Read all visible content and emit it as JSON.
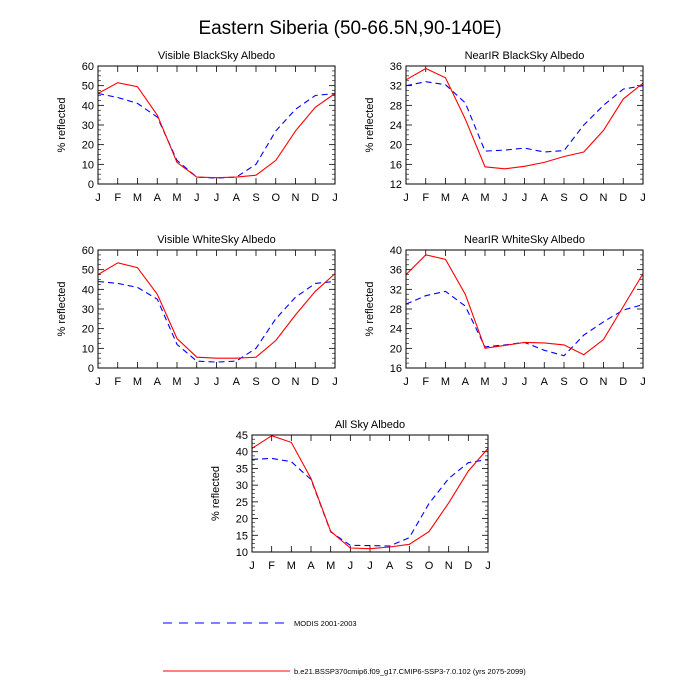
{
  "title": "Eastern Siberia (50-66.5N,90-140E)",
  "colors": {
    "modis": "#0000ff",
    "model": "#ff0000",
    "axis": "#000000"
  },
  "months": [
    "J",
    "F",
    "M",
    "A",
    "M",
    "J",
    "J",
    "A",
    "S",
    "O",
    "N",
    "D",
    "J"
  ],
  "ylabel": "% reflected",
  "legend": {
    "modis": "MODIS 2001-2003",
    "model": "b.e21.BSSP370cmip6.f09_g17.CMIP6-SSP3-7.0.102 (yrs 2075-2099)"
  },
  "chart_data": [
    {
      "type": "line",
      "title": "Visible BlackSky Albedo",
      "ylabel": "% reflected",
      "ylim": [
        0,
        60
      ],
      "yticks": [
        0,
        10,
        20,
        30,
        40,
        50,
        60
      ],
      "categories": [
        "J",
        "F",
        "M",
        "A",
        "M",
        "J",
        "J",
        "A",
        "S",
        "O",
        "N",
        "D",
        "J"
      ],
      "series": [
        {
          "name": "MODIS 2001-2003",
          "values": [
            46,
            44,
            41,
            34,
            12,
            3.5,
            3,
            3.5,
            10,
            27,
            38,
            45,
            46
          ]
        },
        {
          "name": "b.e21.BSSP370cmip6.f09_g17.CMIP6-SSP3-7.0.102 (yrs 2075-2099)",
          "values": [
            46,
            51.5,
            49.5,
            35,
            11,
            3.5,
            3.2,
            3.5,
            4.5,
            12,
            27,
            39,
            46
          ]
        }
      ]
    },
    {
      "type": "line",
      "title": "NearIR BlackSky Albedo",
      "ylabel": "% reflected",
      "ylim": [
        12,
        36
      ],
      "yticks": [
        12,
        16,
        20,
        24,
        28,
        32,
        36
      ],
      "categories": [
        "J",
        "F",
        "M",
        "A",
        "M",
        "J",
        "J",
        "A",
        "S",
        "O",
        "N",
        "D",
        "J"
      ],
      "series": [
        {
          "name": "MODIS 2001-2003",
          "values": [
            32,
            32.8,
            32.2,
            28.5,
            18.7,
            18.9,
            19.3,
            18.5,
            18.8,
            24,
            28,
            31.3,
            32
          ]
        },
        {
          "name": "b.e21.BSSP370cmip6.f09_g17.CMIP6-SSP3-7.0.102 (yrs 2075-2099)",
          "values": [
            33.2,
            35.5,
            33.6,
            25.2,
            15.5,
            15.1,
            15.6,
            16.4,
            17.6,
            18.5,
            22.9,
            29.3,
            32.5
          ]
        }
      ]
    },
    {
      "type": "line",
      "title": "Visible WhiteSky Albedo",
      "ylabel": "% reflected",
      "ylim": [
        0,
        60
      ],
      "yticks": [
        0,
        10,
        20,
        30,
        40,
        50,
        60
      ],
      "categories": [
        "J",
        "F",
        "M",
        "A",
        "M",
        "J",
        "J",
        "A",
        "S",
        "O",
        "N",
        "D",
        "J"
      ],
      "series": [
        {
          "name": "MODIS 2001-2003",
          "values": [
            44,
            43,
            41,
            35,
            12,
            3.5,
            3,
            3.5,
            10,
            25,
            36,
            43,
            44
          ]
        },
        {
          "name": "b.e21.BSSP370cmip6.f09_g17.CMIP6-SSP3-7.0.102 (yrs 2075-2099)",
          "values": [
            47.5,
            53.5,
            51,
            37.5,
            15,
            5.5,
            5,
            5,
            5.5,
            14,
            27,
            39,
            48
          ]
        }
      ]
    },
    {
      "type": "line",
      "title": "NearIR WhiteSky Albedo",
      "ylabel": "% reflected",
      "ylim": [
        16,
        40
      ],
      "yticks": [
        16,
        20,
        24,
        28,
        32,
        36,
        40
      ],
      "categories": [
        "J",
        "F",
        "M",
        "A",
        "M",
        "J",
        "J",
        "A",
        "S",
        "O",
        "N",
        "D",
        "J"
      ],
      "series": [
        {
          "name": "MODIS 2001-2003",
          "values": [
            29,
            30.7,
            31.6,
            28.6,
            20.3,
            20.7,
            21.2,
            19.6,
            18.5,
            22.7,
            25.4,
            27.8,
            28.9
          ]
        },
        {
          "name": "b.e21.BSSP370cmip6.f09_g17.CMIP6-SSP3-7.0.102 (yrs 2075-2099)",
          "values": [
            35,
            39,
            38.1,
            31,
            20,
            20.6,
            21.2,
            21.1,
            20.7,
            18.7,
            21.8,
            28.5,
            35.2
          ]
        }
      ]
    },
    {
      "type": "line",
      "title": "All Sky Albedo",
      "ylabel": "% reflected",
      "ylim": [
        10,
        45
      ],
      "yticks": [
        10,
        15,
        20,
        25,
        30,
        35,
        40,
        45
      ],
      "categories": [
        "J",
        "F",
        "M",
        "A",
        "M",
        "J",
        "J",
        "A",
        "S",
        "O",
        "N",
        "D",
        "J"
      ],
      "series": [
        {
          "name": "MODIS 2001-2003",
          "values": [
            37.7,
            38,
            37,
            31.7,
            16,
            12,
            11.9,
            11.8,
            14.3,
            24.5,
            32,
            36.7,
            37.7
          ]
        },
        {
          "name": "b.e21.BSSP370cmip6.f09_g17.CMIP6-SSP3-7.0.102 (yrs 2075-2099)",
          "values": [
            41,
            44.8,
            42.8,
            32,
            16.2,
            11.2,
            11,
            11.5,
            12.3,
            16.1,
            24.7,
            34.2,
            41
          ]
        }
      ]
    }
  ]
}
